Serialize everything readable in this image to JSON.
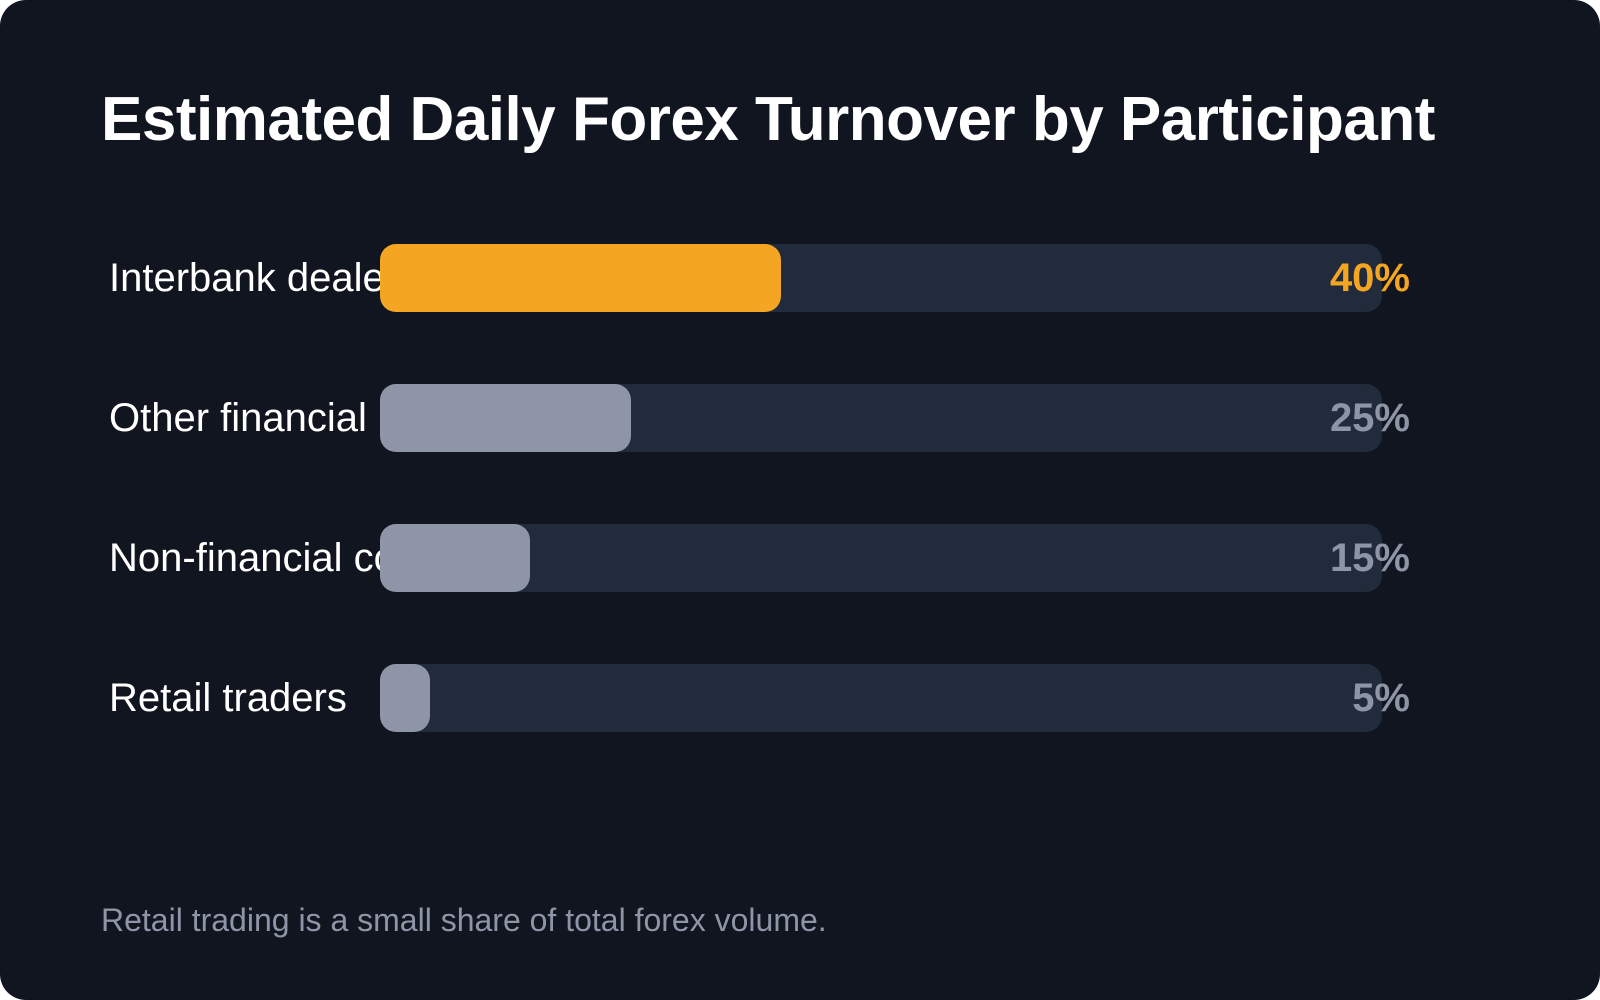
{
  "title": "Estimated Daily Forex Turnover by Participant",
  "footnote": "Retail trading is a small share of total forex volume.",
  "colors": {
    "background": "#11151f",
    "track": "#222b3b",
    "highlight": "#f4a623",
    "muted": "#8d95a6",
    "text": "#ffffff"
  },
  "chart_data": {
    "type": "bar",
    "orientation": "horizontal",
    "categories": [
      "Interbank dealers",
      "Other financial institutions",
      "Non-financial corporations",
      "Retail traders"
    ],
    "values": [
      40,
      25,
      15,
      5
    ],
    "value_labels": [
      "40%",
      "25%",
      "15%",
      "5%"
    ],
    "xlim": [
      0,
      100
    ],
    "unit": "%",
    "highlighted_index": 0,
    "grid": false,
    "legend": "none"
  }
}
